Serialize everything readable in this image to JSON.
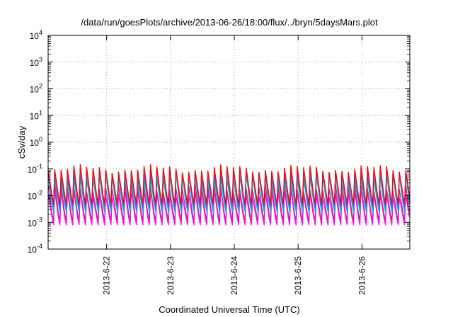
{
  "chart_data": {
    "type": "line",
    "title": "/data/run/goesPlots/archive/2013-06-26/18:00/flux/../bryn/5daysMars.plot",
    "xlabel": "Coordinated Universal Time (UTC)",
    "ylabel": "cSv/day",
    "y_scale": "log",
    "ylim": [
      0.0001,
      10000
    ],
    "xlim": [
      "2013-06-21T02:00",
      "2013-06-26T18:00"
    ],
    "x_ticks": [
      "2013-6-22",
      "2013-6-23",
      "2013-6-24",
      "2013-6-25",
      "2013-6-26"
    ],
    "y_ticks": [
      {
        "base": "10",
        "exp": "-4",
        "value": 0.0001
      },
      {
        "base": "10",
        "exp": "-3",
        "value": 0.001
      },
      {
        "base": "10",
        "exp": "-2",
        "value": 0.01
      },
      {
        "base": "10",
        "exp": "-1",
        "value": 0.1
      },
      {
        "base": "10",
        "exp": "0",
        "value": 1
      },
      {
        "base": "10",
        "exp": "1",
        "value": 10
      },
      {
        "base": "10",
        "exp": "2",
        "value": 100
      },
      {
        "base": "10",
        "exp": "3",
        "value": 1000
      },
      {
        "base": "10",
        "exp": "4",
        "value": 10000
      }
    ],
    "grid": true,
    "legend": "none",
    "cycle_hours": 2.4,
    "series": [
      {
        "color": "#ff00ff",
        "min": 0.0008,
        "max": 0.012
      },
      {
        "color": "#cc22aa",
        "min": 0.0011,
        "max": 0.02
      },
      {
        "color": "#0000ff",
        "min": 0.003,
        "max": 0.06
      },
      {
        "color": "#00bbbb",
        "min": 0.0025,
        "max": 0.05
      },
      {
        "color": "#2277ff",
        "min": 0.004,
        "max": 0.075
      },
      {
        "color": "#ff0000",
        "min": 0.005,
        "max": 0.1
      }
    ]
  }
}
